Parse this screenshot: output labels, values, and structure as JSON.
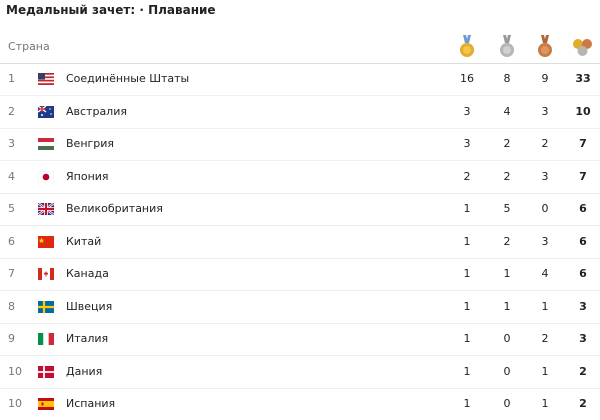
{
  "header": {
    "title": "Медальный зачет: · Плавание"
  },
  "table": {
    "country_header": "Страна",
    "rows": [
      [
        1,
        "Соединённые Штаты",
        16,
        8,
        9,
        33
      ],
      [
        2,
        "Австралия",
        3,
        4,
        3,
        10
      ],
      [
        3,
        "Венгрия",
        3,
        2,
        2,
        7
      ],
      [
        4,
        "Япония",
        2,
        2,
        3,
        7
      ],
      [
        5,
        "Великобритания",
        1,
        5,
        0,
        6
      ],
      [
        6,
        "Китай",
        1,
        2,
        3,
        6
      ],
      [
        7,
        "Канада",
        1,
        1,
        4,
        6
      ],
      [
        8,
        "Швеция",
        1,
        1,
        1,
        3
      ],
      [
        9,
        "Италия",
        1,
        0,
        2,
        3
      ],
      [
        10,
        "Дания",
        1,
        0,
        1,
        2
      ],
      [
        10,
        "Испания",
        1,
        0,
        1,
        2
      ]
    ]
  }
}
